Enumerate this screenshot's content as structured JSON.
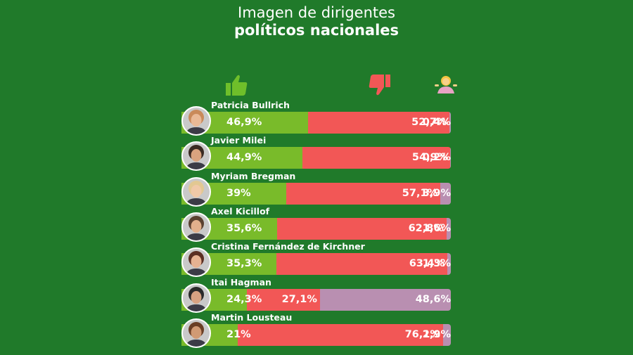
{
  "title": {
    "line1": "Imagen de dirigentes",
    "line2": "políticos nacionales"
  },
  "colors": {
    "background": "#207a2a",
    "positive": "#79bb2a",
    "negative": "#f25756",
    "undecided": "#b98fb1"
  },
  "icons": [
    "thumbs-up-icon",
    "thumbs-down-icon",
    "shrug-person-icon"
  ],
  "chart_data": {
    "type": "bar",
    "stacked": true,
    "orientation": "horizontal",
    "categories": [
      "Patricia Bullrich",
      "Javier Milei",
      "Myriam Bregman",
      "Axel Kicillof",
      "Cristina Fernández de Kirchner",
      "Itai Hagman",
      "Martin Lousteau"
    ],
    "series": [
      {
        "values": [
          46.9,
          44.9,
          39,
          35.6,
          35.3,
          24.3,
          21
        ],
        "labels": [
          "46,9%",
          "44,9%",
          "39%",
          "35,6%",
          "35,3%",
          "24,3%",
          "21%"
        ]
      },
      {
        "values": [
          52.7,
          54.9,
          57.1,
          62.8,
          63.4,
          27.1,
          76.1
        ],
        "labels": [
          "52,7%",
          "54,9%",
          "57,1%",
          "62,8%",
          "63,4%",
          "27,1%",
          "76,1%"
        ]
      },
      {
        "values": [
          0.4,
          0.2,
          3.9,
          1.6,
          1.3,
          48.6,
          2.9
        ],
        "labels": [
          "0,4%",
          "0,2%",
          "3,9%",
          "1,6%",
          "1,3%",
          "48,6%",
          "2,9%"
        ]
      }
    ],
    "xlim": [
      0,
      100
    ],
    "legend": "icons above columns"
  }
}
